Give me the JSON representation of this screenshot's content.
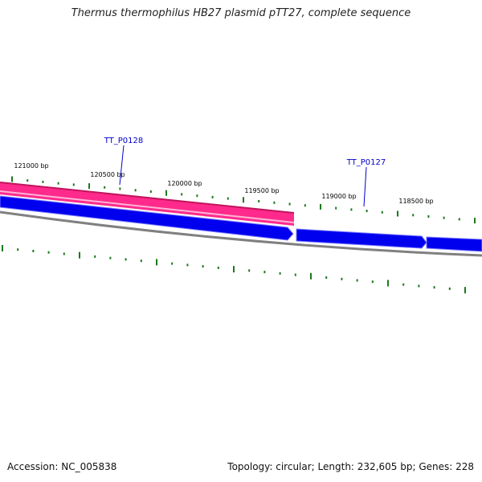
{
  "title": "Thermus thermophilus HB27 plasmid pTT27, complete sequence",
  "footer": {
    "accession": "Accession: NC_005838",
    "summary": "Topology: circular; Length: 232,605 bp; Genes: 228"
  },
  "scale_labels": [
    "121000 bp",
    "120500 bp",
    "120000 bp",
    "119500 bp",
    "119000 bp",
    "118500 bp"
  ],
  "gene_labels": [
    {
      "text": "TT_P0128",
      "color": "#0000cc"
    },
    {
      "text": "TT_P0127",
      "color": "#0000cc"
    }
  ],
  "colors": {
    "feature_pink": "#ff2a8c",
    "feature_pink_dark": "#c0145c",
    "gene_blue": "#0000ee",
    "backbone_grey": "#808080",
    "ticks_green": "#1a7a1a"
  }
}
